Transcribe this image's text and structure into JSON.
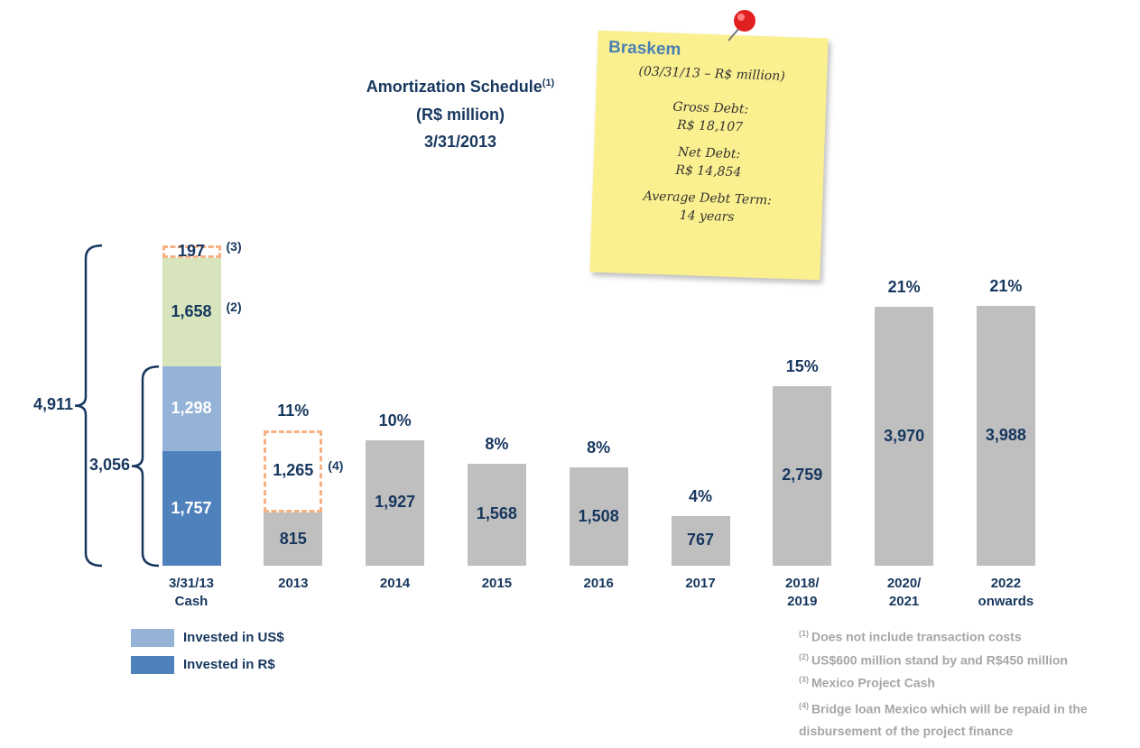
{
  "chart_data": {
    "type": "bar",
    "title": "Amortization Schedule",
    "title_note": "(1)",
    "subtitle": "(R$ million)",
    "date": "3/31/2013",
    "categories": [
      "3/31/13\nCash",
      "2013",
      "2014",
      "2015",
      "2016",
      "2017",
      "2018/\n2019",
      "2020/\n2021",
      "2022\nonwards"
    ],
    "ylim": [
      0,
      4000
    ],
    "series": [
      {
        "name": "Invested in R$",
        "color": "#4f81bd",
        "label_color": "#ffffff",
        "values": [
          1757,
          null,
          null,
          null,
          null,
          null,
          null,
          null,
          null
        ],
        "value_labels": [
          "1,757",
          null,
          null,
          null,
          null,
          null,
          null,
          null,
          null
        ]
      },
      {
        "name": "Invested in US$",
        "color": "#95b3d7",
        "label_color": "#ffffff",
        "values": [
          1298,
          null,
          null,
          null,
          null,
          null,
          null,
          null,
          null
        ],
        "value_labels": [
          "1,298",
          null,
          null,
          null,
          null,
          null,
          null,
          null,
          null
        ]
      },
      {
        "color": "#bfbfbf",
        "label_color": "#17375e",
        "values": [
          null,
          815,
          1927,
          1568,
          1508,
          767,
          2759,
          3970,
          3988
        ],
        "value_labels": [
          null,
          null,
          "1,927",
          "1,568",
          "1,508",
          null,
          "2,759",
          "3,970",
          "3,988"
        ]
      },
      {
        "color": "#d7e4bc",
        "label_color": "#17375e",
        "values": [
          1658,
          null,
          null,
          null,
          null,
          null,
          null,
          null,
          null
        ],
        "value_labels": [
          "1,658",
          null,
          null,
          null,
          null,
          null,
          null,
          null,
          null
        ],
        "markers": [
          "(2)",
          null,
          null,
          null,
          null,
          null,
          null,
          null,
          null
        ]
      },
      {
        "color": "#f4b183",
        "dashed": true,
        "label_color": "#17375e",
        "values": [
          197,
          1265,
          null,
          null,
          null,
          null,
          null,
          null,
          null
        ],
        "value_labels": [
          null,
          "1,265",
          null,
          null,
          null,
          null,
          null,
          null,
          null
        ],
        "markers": [
          "(3)",
          "(4)",
          null,
          null,
          null,
          null,
          null,
          null,
          null
        ]
      }
    ],
    "shares": [
      null,
      "11%",
      "10%",
      "8%",
      "8%",
      "4%",
      "15%",
      "21%",
      "21%"
    ],
    "brackets": [
      {
        "value": 4911,
        "label": "4,911"
      },
      {
        "value": 3056,
        "label": "3,056"
      }
    ]
  },
  "note": {
    "brand": "Braskem",
    "lines": [
      "(03/31/13 – R$ million)",
      "Gross Debt:",
      "R$ 18,107",
      "Net Debt:",
      "R$ 14,854",
      "Average Debt Term:",
      "14 years"
    ]
  },
  "footnotes": [
    {
      "mark": "(1)",
      "text": "Does not include transaction costs"
    },
    {
      "mark": "(2)",
      "text": "US$600 million stand by and R$450 million"
    },
    {
      "mark": "(3)",
      "text": "Mexico Project Cash"
    },
    {
      "mark": "(4)",
      "text": "Bridge loan Mexico which will be repaid in the disbursement of the project finance"
    }
  ]
}
